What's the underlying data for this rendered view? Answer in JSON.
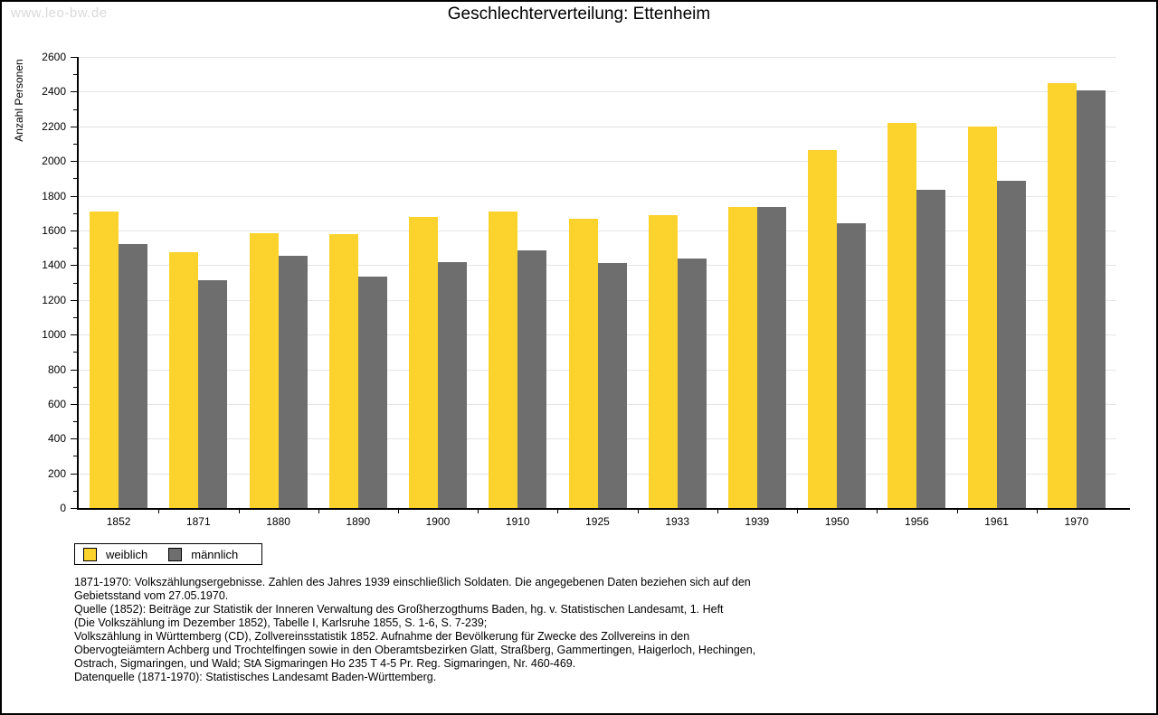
{
  "watermark": "www.leo-bw.de",
  "title": "Geschlechterverteilung: Ettenheim",
  "colors": {
    "weiblich": "#fcd32d",
    "maennlich": "#6e6e6e",
    "grid": "#e5e5e5",
    "axis": "#000000",
    "watermark": "#d9d9d9"
  },
  "chart_data": {
    "type": "bar",
    "title": "Geschlechterverteilung: Ettenheim",
    "xlabel": "",
    "ylabel": "Anzahl Personen",
    "ylim": [
      0,
      2600
    ],
    "ytick_step": 200,
    "yminor_step": 100,
    "grid": true,
    "legend_position": "bottom-left",
    "categories": [
      "1852",
      "1871",
      "1880",
      "1890",
      "1900",
      "1910",
      "1925",
      "1933",
      "1939",
      "1950",
      "1956",
      "1961",
      "1970"
    ],
    "series": [
      {
        "name": "weiblich",
        "color": "#fcd32d",
        "values": [
          1710,
          1475,
          1585,
          1580,
          1680,
          1710,
          1670,
          1690,
          1735,
          2065,
          2220,
          2200,
          2450
        ]
      },
      {
        "name": "männlich",
        "color": "#6e6e6e",
        "values": [
          1520,
          1315,
          1455,
          1335,
          1415,
          1485,
          1410,
          1440,
          1735,
          1640,
          1835,
          1885,
          2410
        ]
      }
    ]
  },
  "legend": {
    "items": [
      {
        "label": "weiblich",
        "color": "#fcd32d"
      },
      {
        "label": "männlich",
        "color": "#6e6e6e"
      }
    ]
  },
  "footnotes": {
    "lines": [
      "1871-1970: Volkszählungsergebnisse. Zahlen des Jahres 1939 einschließlich Soldaten. Die angegebenen Daten beziehen sich auf den",
      "Gebietsstand vom 27.05.1970.",
      "Quelle (1852): Beiträge zur Statistik der Inneren Verwaltung des Großherzogthums Baden, hg. v. Statistischen Landesamt, 1. Heft",
      "(Die Volkszählung im Dezember 1852), Tabelle I, Karlsruhe 1855, S. 1-6, S. 7-239;",
      "Volkszählung in Württemberg (CD), Zollvereinsstatistik 1852. Aufnahme der Bevölkerung für Zwecke des Zollvereins in den",
      "Obervogteiämtern Achberg und Trochtelfingen sowie in den Oberamtsbezirken Glatt, Straßberg, Gammertingen, Haigerloch, Hechingen,",
      "Ostrach, Sigmaringen, und Wald; StA Sigmaringen Ho 235 T 4-5 Pr. Reg. Sigmaringen, Nr. 460-469."
    ],
    "datasource": "Datenquelle (1871-1970): Statistisches Landesamt Baden-Württemberg."
  }
}
